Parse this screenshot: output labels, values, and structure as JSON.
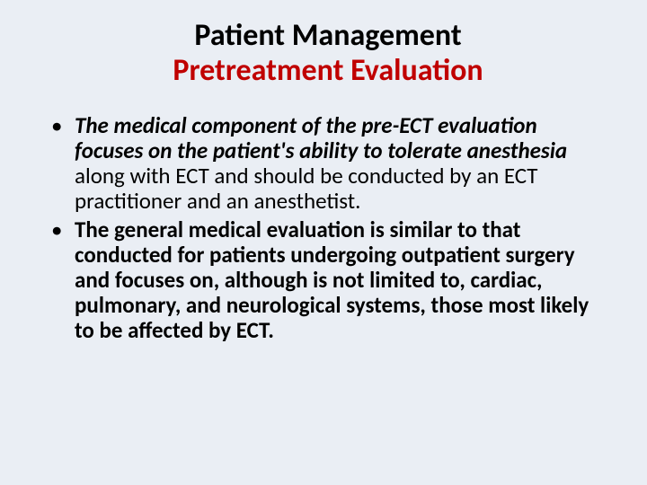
{
  "colors": {
    "background": "#eaeef4",
    "title_line1": "#000000",
    "title_line2": "#c00000",
    "body_text": "#000000",
    "bullet": "#000000"
  },
  "typography": {
    "font_family": "Calibri",
    "title_fontsize_pt": 26,
    "body_fontsize_pt": 19,
    "title_weight": 700
  },
  "title": {
    "line1": "Patient Management",
    "line2": "Pretreatment Evaluation"
  },
  "bullets": [
    {
      "runs": [
        {
          "text": "The medical component of the pre-ECT evaluation focuses on the patient's ability to tolerate anesthesia",
          "style": "bold-italic"
        },
        {
          "text": " along with ECT and should be conducted by an ECT practitioner and an anesthetist.",
          "style": "plain"
        }
      ]
    },
    {
      "runs": [
        {
          "text": " The general medical evaluation is similar to that conducted for patients undergoing outpatient surgery and focuses on, although is not limited to, cardiac, pulmonary, and neurological systems, those most likely to be affected by ECT.",
          "style": "bold"
        }
      ]
    }
  ]
}
